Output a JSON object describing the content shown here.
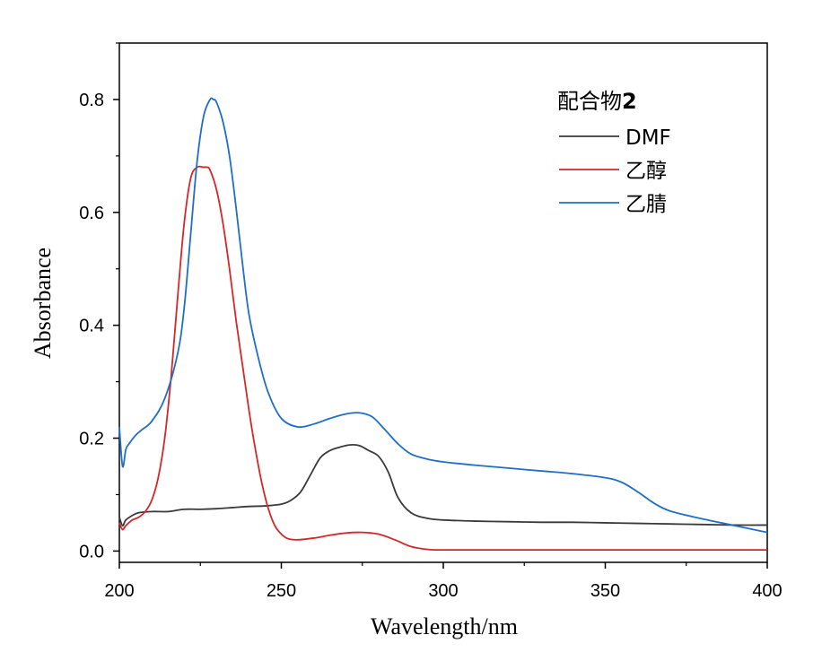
{
  "chart_data": {
    "type": "line",
    "title": "",
    "xlabel": "Wavelength/nm",
    "ylabel": "Absorbance",
    "xlim": [
      200,
      400
    ],
    "ylim": [
      -0.02,
      0.9
    ],
    "xticks": [
      200,
      250,
      300,
      350,
      400
    ],
    "xtick_labels": [
      "200",
      "250",
      "300",
      "350",
      "400"
    ],
    "yticks": [
      0.0,
      0.2,
      0.4,
      0.6,
      0.8
    ],
    "ytick_labels": [
      "0.0",
      "0.2",
      "0.4",
      "0.6",
      "0.8"
    ],
    "grid": false,
    "legend": {
      "position": "top-right",
      "title_text": "配合物",
      "title_bold": "2"
    },
    "series": [
      {
        "name": "DMF",
        "color": "#3a3a3a",
        "x": [
          200,
          201,
          202,
          204,
          206,
          210,
          215,
          220,
          225,
          230,
          235,
          240,
          245,
          250,
          253,
          256,
          259,
          262,
          265,
          268,
          271,
          274,
          277,
          280,
          283,
          286,
          290,
          295,
          300,
          310,
          320,
          330,
          340,
          350,
          360,
          370,
          380,
          390,
          400
        ],
        "y": [
          0.06,
          0.045,
          0.055,
          0.063,
          0.068,
          0.07,
          0.07,
          0.074,
          0.074,
          0.075,
          0.077,
          0.079,
          0.08,
          0.083,
          0.09,
          0.105,
          0.135,
          0.165,
          0.178,
          0.184,
          0.188,
          0.187,
          0.178,
          0.168,
          0.14,
          0.095,
          0.068,
          0.058,
          0.055,
          0.053,
          0.052,
          0.051,
          0.051,
          0.05,
          0.049,
          0.048,
          0.047,
          0.046,
          0.046
        ]
      },
      {
        "name": "乙醇",
        "color": "#d62728",
        "x": [
          200,
          201,
          202,
          204,
          206,
          208,
          210,
          212,
          214,
          216,
          218,
          220,
          222,
          224,
          226,
          227,
          228,
          230,
          232,
          234,
          236,
          238,
          240,
          242,
          244,
          246,
          248,
          250,
          252,
          255,
          260,
          265,
          270,
          275,
          280,
          285,
          290,
          295,
          300,
          320,
          350,
          400
        ],
        "y": [
          0.05,
          0.038,
          0.045,
          0.055,
          0.06,
          0.07,
          0.09,
          0.13,
          0.2,
          0.31,
          0.45,
          0.58,
          0.66,
          0.68,
          0.68,
          0.68,
          0.675,
          0.64,
          0.58,
          0.5,
          0.41,
          0.33,
          0.25,
          0.18,
          0.12,
          0.075,
          0.045,
          0.03,
          0.022,
          0.02,
          0.023,
          0.028,
          0.032,
          0.033,
          0.03,
          0.02,
          0.008,
          0.003,
          0.002,
          0.002,
          0.002,
          0.002
        ]
      },
      {
        "name": "乙腈",
        "color": "#1f6fc6",
        "x": [
          200,
          201,
          202,
          203,
          205,
          207,
          210,
          214,
          218,
          220,
          222,
          224,
          226,
          228,
          229,
          230,
          232,
          234,
          236,
          238,
          240,
          243,
          246,
          250,
          255,
          260,
          265,
          270,
          274,
          278,
          282,
          286,
          290,
          295,
          300,
          310,
          320,
          330,
          340,
          350,
          355,
          360,
          365,
          370,
          380,
          390,
          400
        ],
        "y": [
          0.22,
          0.15,
          0.18,
          0.19,
          0.205,
          0.215,
          0.23,
          0.27,
          0.35,
          0.43,
          0.56,
          0.69,
          0.77,
          0.8,
          0.8,
          0.795,
          0.76,
          0.7,
          0.61,
          0.51,
          0.42,
          0.34,
          0.28,
          0.235,
          0.22,
          0.225,
          0.235,
          0.243,
          0.245,
          0.238,
          0.215,
          0.19,
          0.172,
          0.163,
          0.158,
          0.152,
          0.147,
          0.142,
          0.137,
          0.13,
          0.122,
          0.105,
          0.085,
          0.071,
          0.057,
          0.045,
          0.033
        ]
      }
    ]
  }
}
